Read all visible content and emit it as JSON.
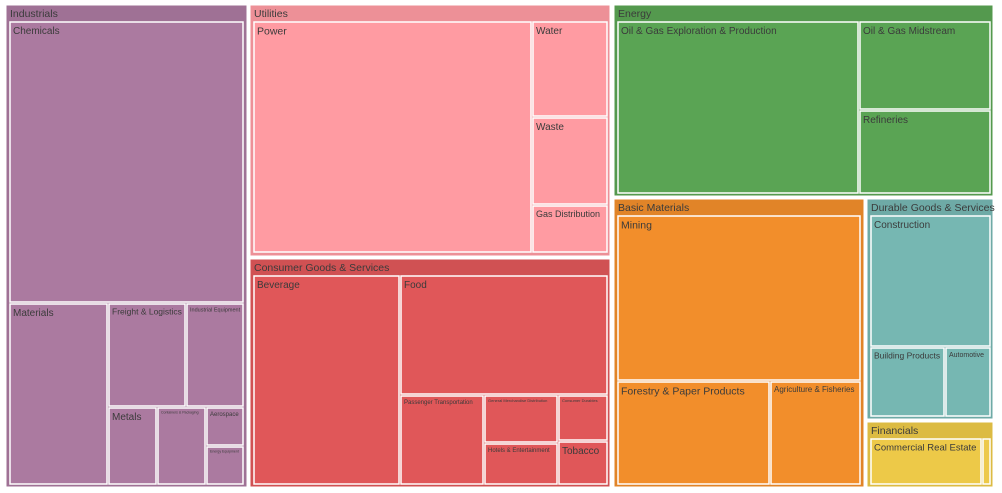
{
  "chart_data": {
    "type": "treemap",
    "sectors": [
      {
        "name": "Industrials",
        "color": "#ab7aa0",
        "children": [
          {
            "name": "Chemicals"
          },
          {
            "name": "Materials"
          },
          {
            "name": "Freight & Logistics"
          },
          {
            "name": "Industrial Equipment"
          },
          {
            "name": "Metals"
          },
          {
            "name": "Containers & Packaging"
          },
          {
            "name": "Aerospace"
          },
          {
            "name": "Energy Equipment"
          }
        ]
      },
      {
        "name": "Utilities",
        "color": "#ff9ba2",
        "children": [
          {
            "name": "Power"
          },
          {
            "name": "Water"
          },
          {
            "name": "Waste"
          },
          {
            "name": "Gas Distribution"
          }
        ]
      },
      {
        "name": "Energy",
        "color": "#5aa454",
        "children": [
          {
            "name": "Oil & Gas Exploration & Production"
          },
          {
            "name": "Oil & Gas Midstream"
          },
          {
            "name": "Refineries"
          }
        ]
      },
      {
        "name": "Consumer Goods & Services",
        "color": "#e05759",
        "children": [
          {
            "name": "Beverage"
          },
          {
            "name": "Food"
          },
          {
            "name": "Passenger Transportation"
          },
          {
            "name": "General Merchandise Distribution"
          },
          {
            "name": "Consumer Durables"
          },
          {
            "name": "Hotels & Entertainment"
          },
          {
            "name": "Tobacco"
          }
        ]
      },
      {
        "name": "Basic Materials",
        "color": "#f28e2b",
        "children": [
          {
            "name": "Mining"
          },
          {
            "name": "Forestry & Paper Products"
          },
          {
            "name": "Agriculture & Fisheries"
          }
        ]
      },
      {
        "name": "Durable Goods & Services",
        "color": "#76b7b2",
        "children": [
          {
            "name": "Construction"
          },
          {
            "name": "Building Products"
          },
          {
            "name": "Automotive"
          }
        ]
      },
      {
        "name": "Financials",
        "color": "#edc948",
        "children": [
          {
            "name": "Commercial Real Estate"
          },
          {
            "name": ""
          }
        ]
      }
    ]
  }
}
